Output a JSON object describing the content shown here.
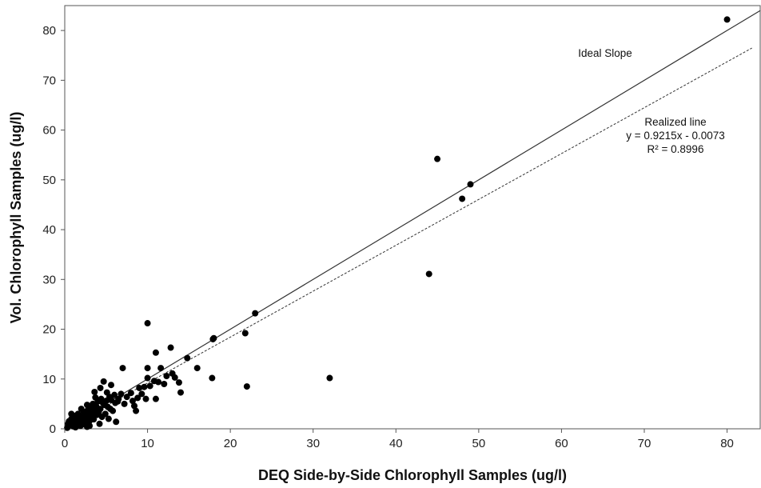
{
  "chart_data": {
    "type": "scatter",
    "xlabel": "DEQ Side-by-Side Chlorophyll Samples (ug/l)",
    "ylabel": "Vol. Chlorophyll Samples (ug/l)",
    "xlim": [
      0,
      84
    ],
    "ylim": [
      0,
      85
    ],
    "x_ticks": [
      0,
      10,
      20,
      30,
      40,
      50,
      60,
      70,
      80
    ],
    "y_ticks": [
      0,
      10,
      20,
      30,
      40,
      50,
      60,
      70,
      80
    ],
    "grid": false,
    "colors": {
      "points": "#000000",
      "lines": "#333333"
    },
    "lines": {
      "ideal": {
        "label": "Ideal Slope",
        "slope": 1.0,
        "intercept": 0,
        "style": "solid"
      },
      "realized": {
        "label": "Realized line",
        "equation": "y = 0.9215x - 0.0073",
        "r_squared": "R² = 0.8996",
        "slope": 0.9215,
        "intercept": -0.0073,
        "style": "dotted"
      }
    },
    "points": [
      [
        0.3,
        0.2
      ],
      [
        0.5,
        1.5
      ],
      [
        0.6,
        0.8
      ],
      [
        0.8,
        2.0
      ],
      [
        1.0,
        0.5
      ],
      [
        1.1,
        1.2
      ],
      [
        1.3,
        0.3
      ],
      [
        1.4,
        2.2
      ],
      [
        1.5,
        1.0
      ],
      [
        1.6,
        3.0
      ],
      [
        1.8,
        1.8
      ],
      [
        1.9,
        0.6
      ],
      [
        2.0,
        2.5
      ],
      [
        2.1,
        1.4
      ],
      [
        2.2,
        0.9
      ],
      [
        2.3,
        3.4
      ],
      [
        2.4,
        2.0
      ],
      [
        2.5,
        1.2
      ],
      [
        2.6,
        2.8
      ],
      [
        2.7,
        0.4
      ],
      [
        2.8,
        3.8
      ],
      [
        2.9,
        2.2
      ],
      [
        3.0,
        1.6
      ],
      [
        3.1,
        3.0
      ],
      [
        3.2,
        4.2
      ],
      [
        3.3,
        2.6
      ],
      [
        3.4,
        5.0
      ],
      [
        3.5,
        1.9
      ],
      [
        3.6,
        3.6
      ],
      [
        3.7,
        6.3
      ],
      [
        3.8,
        4.5
      ],
      [
        3.9,
        2.8
      ],
      [
        4.0,
        5.5
      ],
      [
        4.1,
        3.3
      ],
      [
        4.2,
        1.0
      ],
      [
        4.3,
        4.0
      ],
      [
        4.4,
        6.0
      ],
      [
        4.5,
        2.4
      ],
      [
        4.6,
        5.2
      ],
      [
        4.7,
        9.5
      ],
      [
        4.8,
        4.8
      ],
      [
        4.9,
        3.0
      ],
      [
        5.0,
        5.6
      ],
      [
        5.1,
        7.3
      ],
      [
        5.2,
        4.4
      ],
      [
        5.3,
        2.0
      ],
      [
        5.4,
        6.4
      ],
      [
        5.5,
        4.0
      ],
      [
        5.6,
        5.8
      ],
      [
        5.8,
        3.6
      ],
      [
        6.0,
        6.8
      ],
      [
        6.1,
        5.2
      ],
      [
        6.2,
        1.4
      ],
      [
        6.5,
        6.0
      ],
      [
        6.8,
        7.0
      ],
      [
        7.0,
        12.2
      ],
      [
        7.2,
        5.0
      ],
      [
        7.5,
        6.4
      ],
      [
        8.0,
        7.2
      ],
      [
        8.2,
        5.6
      ],
      [
        8.4,
        4.6
      ],
      [
        8.6,
        3.6
      ],
      [
        8.8,
        6.2
      ],
      [
        9.0,
        8.2
      ],
      [
        9.3,
        7.0
      ],
      [
        9.6,
        8.4
      ],
      [
        9.8,
        6.0
      ],
      [
        10.0,
        12.2
      ],
      [
        10.0,
        10.2
      ],
      [
        10.0,
        21.2
      ],
      [
        10.3,
        8.6
      ],
      [
        10.8,
        9.6
      ],
      [
        11.0,
        6.0
      ],
      [
        11.0,
        15.3
      ],
      [
        11.3,
        9.4
      ],
      [
        11.6,
        12.2
      ],
      [
        12.0,
        9.0
      ],
      [
        12.3,
        10.6
      ],
      [
        12.8,
        16.3
      ],
      [
        13.0,
        11.1
      ],
      [
        13.3,
        10.3
      ],
      [
        13.8,
        9.3
      ],
      [
        14.0,
        7.3
      ],
      [
        14.8,
        14.2
      ],
      [
        16.0,
        12.2
      ],
      [
        17.8,
        10.2
      ],
      [
        17.9,
        18.0
      ],
      [
        18.0,
        18.2
      ],
      [
        21.8,
        19.2
      ],
      [
        22.0,
        8.5
      ],
      [
        23.0,
        23.2
      ],
      [
        32.0,
        10.2
      ],
      [
        44.0,
        31.1
      ],
      [
        45.0,
        54.2
      ],
      [
        48.0,
        46.2
      ],
      [
        49.0,
        49.1
      ],
      [
        80.0,
        82.2
      ],
      [
        0.8,
        3.0
      ],
      [
        1.2,
        2.6
      ],
      [
        2.0,
        4.0
      ],
      [
        2.7,
        4.8
      ],
      [
        3.0,
        0.6
      ],
      [
        3.6,
        7.4
      ],
      [
        4.3,
        8.2
      ],
      [
        5.6,
        8.8
      ],
      [
        6.4,
        5.5
      ],
      [
        0.4,
        1.0
      ]
    ]
  }
}
